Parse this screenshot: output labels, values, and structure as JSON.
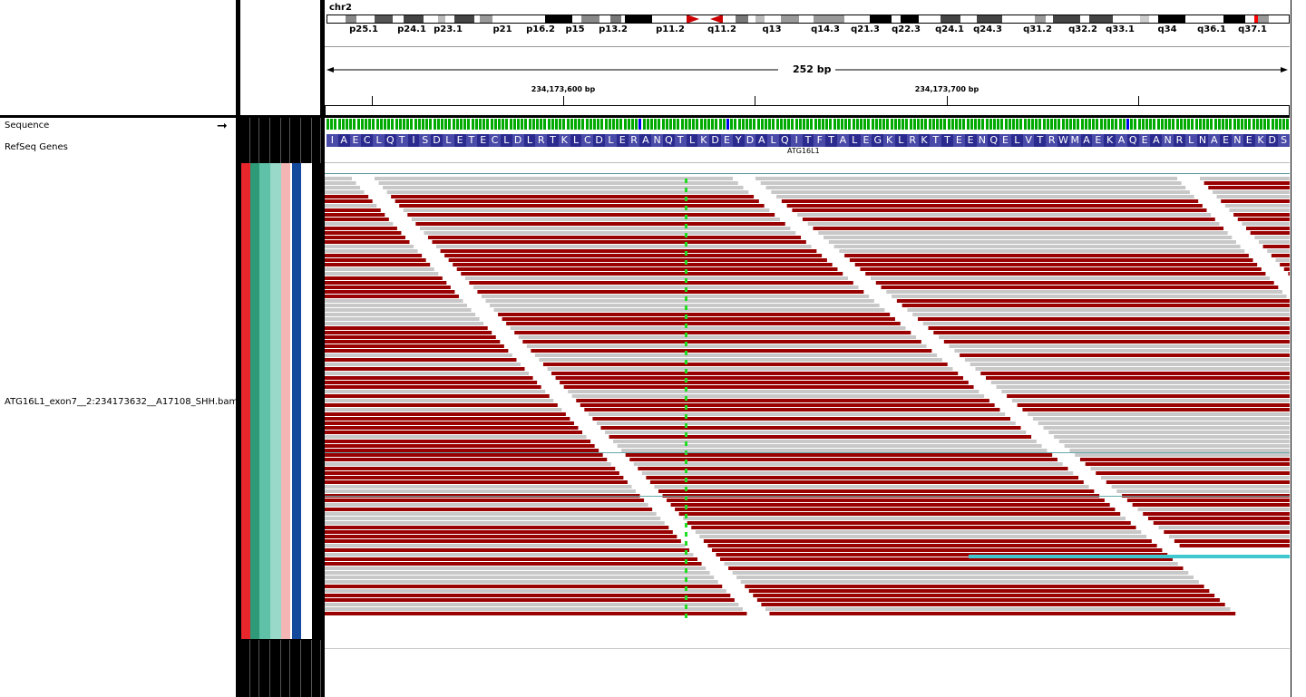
{
  "chromosome": "chr2",
  "span_label": "252 bp",
  "ticks": [
    {
      "label": "234,173,600 bp",
      "x": 621
    },
    {
      "label": "234,173,700 bp",
      "x": 1044
    }
  ],
  "minor_ticks_x": [
    410,
    832,
    1255
  ],
  "cyto_bands": [
    "p25.1",
    "p24.1",
    "p23.1",
    "p21",
    "p16.2",
    "p15",
    "p13.2",
    "p11.2",
    "q11.2",
    "q13",
    "q14.3",
    "q21.3",
    "q22.3",
    "q24.1",
    "q24.3",
    "q31.2",
    "q32.2",
    "q33.1",
    "q34",
    "q36.1",
    "q37.1"
  ],
  "tracks": {
    "sequence": "Sequence",
    "refseq": "RefSeq Genes",
    "bam": "ATG16L1_exon7__2:234173632__A17108_SHH.bam"
  },
  "gene_name": "ATG16L1",
  "amino_acids": "IAECLQTISDLETECLDLRTKLCDLERANQTLKDEYDALQITFTALEGKLRKTTEENQELVTRWMAEKAQEANRLNAENEKDS",
  "colors": {
    "read_reverse": "#990000",
    "read_forward": "#c8c8c8",
    "mismatch": "#22dd22",
    "protein_bg": "#2b2b8f",
    "highlight": "#ff0000"
  },
  "attribute_colors": [
    "#e8262c",
    "#2f9a78",
    "#5fc2a8",
    "#99d9c9",
    "#f4b6b4",
    "#ffffff",
    "#144a9c",
    "#ffffff"
  ]
}
